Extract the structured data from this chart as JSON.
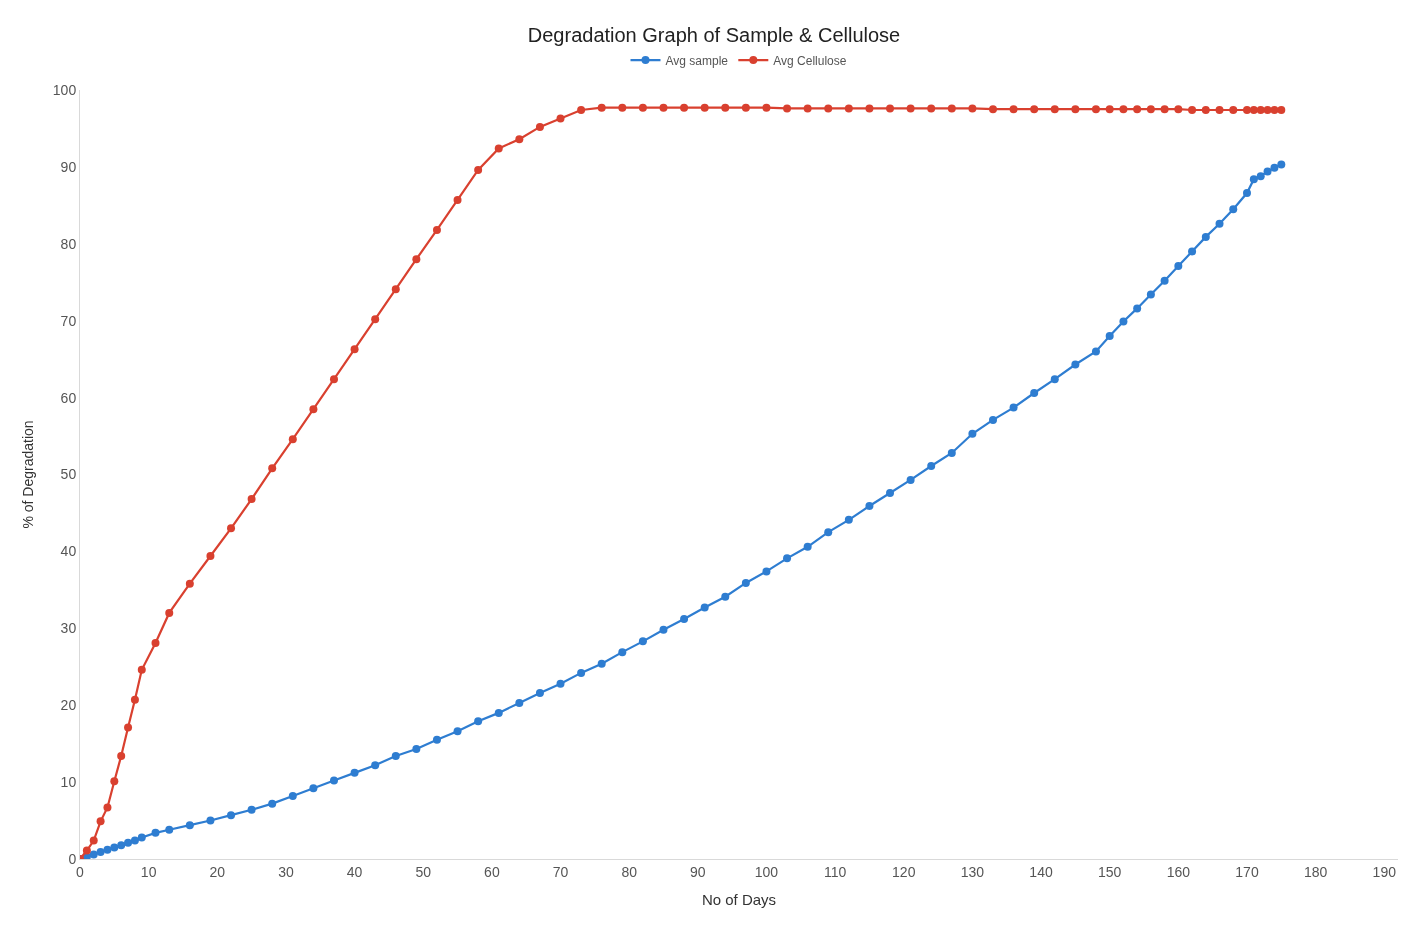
{
  "chart_data": {
    "type": "line",
    "title": "Degradation Graph of Sample & Cellulose",
    "xlabel": "No of Days",
    "ylabel": "% of Degradation",
    "x": [
      0,
      1,
      2,
      3,
      4,
      5,
      6,
      7,
      8,
      9,
      11,
      13,
      16,
      19,
      22,
      25,
      28,
      31,
      34,
      37,
      40,
      43,
      46,
      49,
      52,
      55,
      58,
      61,
      64,
      67,
      70,
      73,
      76,
      79,
      82,
      85,
      88,
      91,
      94,
      97,
      100,
      103,
      106,
      109,
      112,
      115,
      118,
      121,
      124,
      127,
      130,
      133,
      136,
      139,
      142,
      145,
      148,
      150,
      152,
      154,
      156,
      158,
      160,
      162,
      164,
      166,
      168,
      170,
      171,
      172,
      173,
      174,
      175
    ],
    "series": [
      {
        "name": "Avg sample",
        "color": "#2e7dd1",
        "values": [
          0,
          0.3,
          0.6,
          0.9,
          1.2,
          1.5,
          1.8,
          2.1,
          2.4,
          2.8,
          3.4,
          3.8,
          4.4,
          5.0,
          5.7,
          6.4,
          7.2,
          8.2,
          9.2,
          10.2,
          11.2,
          12.2,
          13.4,
          14.3,
          15.5,
          16.6,
          17.9,
          19.0,
          20.3,
          21.6,
          22.8,
          24.2,
          25.4,
          26.9,
          28.3,
          29.8,
          31.2,
          32.7,
          34.1,
          35.9,
          37.4,
          39.1,
          40.6,
          42.5,
          44.1,
          45.9,
          47.6,
          49.3,
          51.1,
          52.8,
          55.3,
          57.1,
          58.7,
          60.6,
          62.4,
          64.3,
          66.0,
          68.0,
          69.9,
          71.6,
          73.4,
          75.2,
          77.1,
          79.0,
          80.9,
          82.6,
          84.5,
          86.6,
          88.4,
          88.8,
          89.4,
          89.9,
          90.3
        ]
      },
      {
        "name": "Avg Cellulose",
        "color": "#d9402f",
        "values": [
          0,
          1.1,
          2.4,
          4.9,
          6.7,
          10.1,
          13.4,
          17.1,
          20.7,
          24.6,
          28.1,
          32.0,
          35.8,
          39.4,
          43.0,
          46.8,
          50.8,
          54.6,
          58.5,
          62.4,
          66.3,
          70.2,
          74.1,
          78.0,
          81.8,
          85.7,
          89.6,
          92.4,
          93.6,
          95.2,
          96.3,
          97.4,
          97.7,
          97.7,
          97.7,
          97.7,
          97.7,
          97.7,
          97.7,
          97.7,
          97.7,
          97.6,
          97.6,
          97.6,
          97.6,
          97.6,
          97.6,
          97.6,
          97.6,
          97.6,
          97.6,
          97.5,
          97.5,
          97.5,
          97.5,
          97.5,
          97.5,
          97.5,
          97.5,
          97.5,
          97.5,
          97.5,
          97.5,
          97.4,
          97.4,
          97.4,
          97.4,
          97.4,
          97.4,
          97.4,
          97.4,
          97.4,
          97.4
        ]
      }
    ],
    "xlim": [
      0,
      192
    ],
    "xticks": [
      0,
      10,
      20,
      30,
      40,
      50,
      60,
      70,
      80,
      90,
      100,
      110,
      120,
      130,
      140,
      150,
      160,
      170,
      180,
      190
    ],
    "ylim": [
      0,
      100
    ],
    "yticks": [
      0,
      10,
      20,
      30,
      40,
      50,
      60,
      70,
      80,
      90,
      100
    ],
    "legend": "top",
    "marker": "circle",
    "line_style": "solid"
  }
}
